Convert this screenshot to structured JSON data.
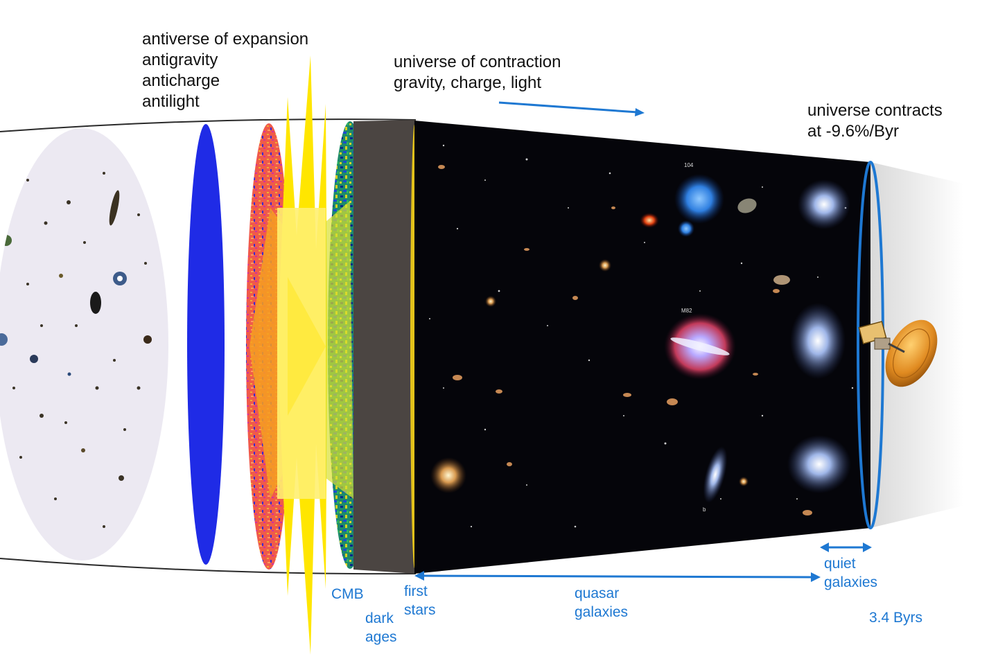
{
  "colors": {
    "label_black": "#111111",
    "label_blue": "#1e78d2",
    "arrow_blue": "#1e78d2",
    "blue_disc": "#1f2be6",
    "big_bang_yellow": "#ffe600",
    "dark_ages_band": "#4b4542",
    "space_background": "#05050a",
    "deep_field_background": "#ece9f2",
    "cmb_teal": "#1d8a6b",
    "early_red": "#f05a4a"
  },
  "labels": {
    "antiverse": [
      "antiverse of expansion",
      "antigravity",
      "anticharge",
      "antilight"
    ],
    "universe": [
      "universe of contraction",
      "gravity, charge, light"
    ],
    "contracts": [
      "universe contracts",
      "at -9.6%/Byr"
    ],
    "cmb": "CMB",
    "dark_ages": [
      "dark",
      "ages"
    ],
    "first_stars": [
      "first",
      "stars"
    ],
    "quasar_galaxies": [
      "quasar",
      "galaxies"
    ],
    "quiet_galaxies": [
      "quiet",
      "galaxies"
    ],
    "duration": "3.4 Byrs",
    "image_tags": [
      "104",
      "M82",
      "b"
    ]
  },
  "icons": [
    "spacecraft-icon",
    "double-arrow-icon",
    "right-arrow-icon"
  ]
}
